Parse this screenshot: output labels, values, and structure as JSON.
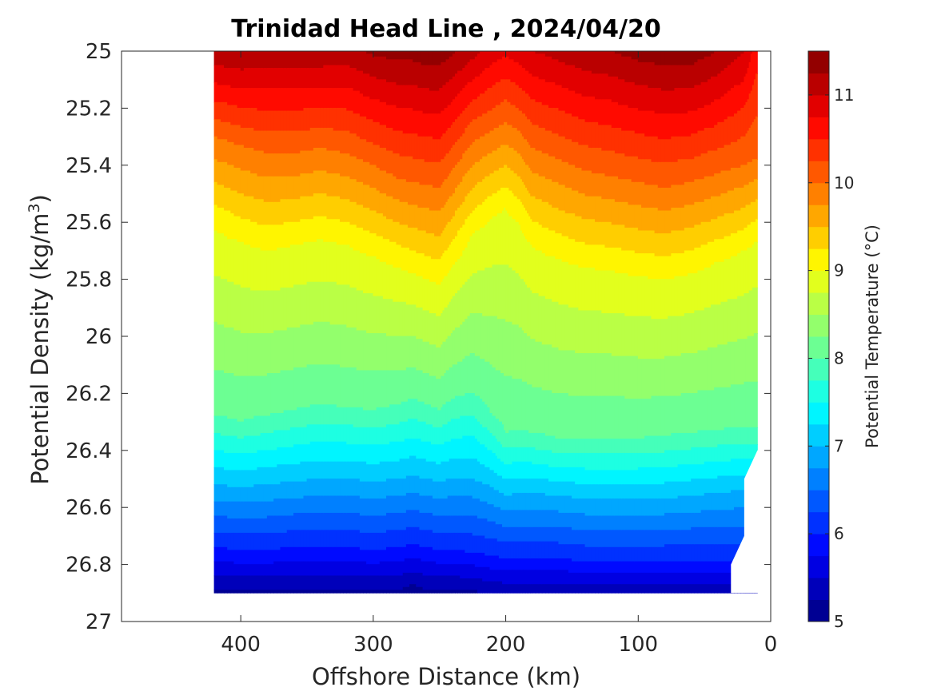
{
  "chart_data": {
    "type": "heatmap",
    "title": "Trinidad Head Line , 2024/04/20",
    "xlabel": "Offshore Distance (km)",
    "ylabel_main": "Potential Density (kg/m",
    "ylabel_sup": "3",
    "ylabel_close": ")",
    "colorbar_label": "Potential Temperature (°C)",
    "x_reversed": true,
    "xlim": [
      0,
      490
    ],
    "ylim": [
      25,
      27
    ],
    "y_reversed": true,
    "x_ticks": [
      400,
      300,
      200,
      100,
      0
    ],
    "x_tick_labels": [
      "400",
      "300",
      "200",
      "100",
      "0"
    ],
    "y_ticks": [
      25,
      25.2,
      25.4,
      25.6,
      25.8,
      26,
      26.2,
      26.4,
      26.6,
      26.8,
      27
    ],
    "y_tick_labels": [
      "25",
      "25.2",
      "25.4",
      "25.6",
      "25.8",
      "26",
      "26.2",
      "26.4",
      "26.6",
      "26.8",
      "27"
    ],
    "colorbar": {
      "min": 5,
      "max": 11.5,
      "step": 0.25,
      "ticks": [
        5,
        6,
        7,
        8,
        9,
        10,
        11
      ],
      "tick_labels": [
        "5",
        "6",
        "7",
        "8",
        "9",
        "10",
        "11"
      ],
      "colormap": "jet"
    },
    "data_extent": {
      "x_min": 10,
      "x_max": 420,
      "y_min": 25,
      "y_max": 26.9,
      "bottom_right_boundary": [
        [
          10,
          26.4
        ],
        [
          20,
          26.5
        ],
        [
          20,
          26.7
        ],
        [
          30,
          26.8
        ],
        [
          30,
          26.9
        ]
      ]
    },
    "profiles": {
      "x": [
        420,
        400,
        380,
        360,
        340,
        320,
        300,
        280,
        270,
        260,
        250,
        240,
        225,
        210,
        200,
        190,
        180,
        160,
        140,
        120,
        100,
        80,
        60,
        40,
        20,
        10
      ],
      "surface_temp": [
        11.2,
        11.25,
        11.2,
        11.2,
        11.2,
        11.15,
        11.3,
        11.35,
        11.35,
        11.4,
        11.4,
        11.3,
        11.1,
        10.9,
        10.8,
        10.9,
        11.0,
        11.1,
        11.2,
        11.25,
        11.35,
        11.4,
        11.4,
        11.25,
        11.0,
        10.6
      ],
      "iso_10": [
        25.3,
        25.33,
        25.36,
        25.36,
        25.34,
        25.36,
        25.4,
        25.45,
        25.46,
        25.47,
        25.48,
        25.42,
        25.32,
        25.28,
        25.25,
        25.28,
        25.34,
        25.38,
        25.42,
        25.44,
        25.46,
        25.48,
        25.46,
        25.43,
        25.4,
        25.38
      ],
      "iso_9": [
        25.62,
        25.67,
        25.7,
        25.68,
        25.66,
        25.68,
        25.72,
        25.76,
        25.78,
        25.8,
        25.82,
        25.75,
        25.64,
        25.58,
        25.55,
        25.6,
        25.68,
        25.73,
        25.76,
        25.77,
        25.79,
        25.8,
        25.78,
        25.74,
        25.7,
        25.66
      ],
      "iso_8": [
        26.28,
        26.3,
        26.28,
        26.26,
        26.24,
        26.25,
        26.26,
        26.24,
        26.22,
        26.24,
        26.26,
        26.22,
        26.2,
        26.28,
        26.34,
        26.33,
        26.34,
        26.36,
        26.36,
        26.36,
        26.36,
        26.35,
        26.34,
        26.33,
        26.32,
        26.32
      ],
      "iso_7": [
        26.52,
        26.53,
        26.52,
        26.51,
        26.5,
        26.5,
        26.51,
        26.5,
        26.49,
        26.5,
        26.51,
        26.5,
        26.5,
        26.53,
        26.56,
        26.55,
        26.55,
        26.56,
        26.57,
        26.57,
        26.57,
        26.57,
        26.56,
        26.55,
        26.54,
        26.54
      ],
      "iso_6": [
        26.74,
        26.75,
        26.75,
        26.74,
        26.74,
        26.74,
        26.75,
        26.74,
        26.73,
        26.74,
        26.75,
        26.75,
        26.76,
        26.77,
        26.78,
        26.78,
        26.78,
        26.78,
        26.79,
        26.79,
        26.79,
        26.79,
        26.79,
        26.79,
        26.79,
        26.79
      ],
      "bottom_temp": [
        5.2,
        5.2,
        5.2,
        5.2,
        5.2,
        5.2,
        5.2,
        5.2,
        5.1,
        5.2,
        5.2,
        5.2,
        5.2,
        5.3,
        5.3,
        5.3,
        5.3,
        5.3,
        5.3,
        5.3,
        5.3,
        5.3,
        5.3,
        5.3,
        5.3,
        5.3
      ]
    }
  }
}
